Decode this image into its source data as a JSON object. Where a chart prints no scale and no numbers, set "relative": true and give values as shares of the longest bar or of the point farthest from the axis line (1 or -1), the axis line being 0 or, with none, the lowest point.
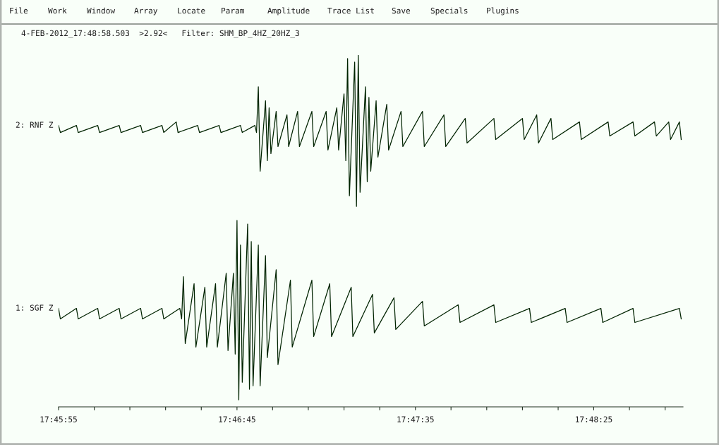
{
  "chart_data": {
    "type": "line",
    "title": "4-FEB-2012_17:48:58.503  >2.92<   Filter: SHM_BP_4HZ_20HZ_3",
    "annotations": [
      "File",
      "Work",
      "Window",
      "Array",
      "Locate",
      "Param",
      "Amplitude",
      "Trace List",
      "Save",
      "Specials",
      "Plugins"
    ],
    "relative": true,
    "xlim": [
      17.76528,
      17.81389
    ],
    "grid": false,
    "legend": false,
    "marker": "none",
    "line_style": "solid",
    "xticks": [
      {
        "value": 17.76528,
        "label": "17:45:55"
      },
      {
        "value": 17.76806,
        "label": null
      },
      {
        "value": 17.77083,
        "label": null
      },
      {
        "value": 17.77361,
        "label": null
      },
      {
        "value": 17.77639,
        "label": null
      },
      {
        "value": 17.77917,
        "label": "17:46:45"
      },
      {
        "value": 17.78194,
        "label": null
      },
      {
        "value": 17.78472,
        "label": null
      },
      {
        "value": 17.7875,
        "label": null
      },
      {
        "value": 17.79028,
        "label": null
      },
      {
        "value": 17.79306,
        "label": "17:47:35"
      },
      {
        "value": 17.79583,
        "label": null
      },
      {
        "value": 17.79861,
        "label": null
      },
      {
        "value": 17.80139,
        "label": null
      },
      {
        "value": 17.80417,
        "label": null
      },
      {
        "value": 17.80694,
        "label": "17:48:25"
      },
      {
        "value": 17.80972,
        "label": null
      },
      {
        "value": 17.8125,
        "label": null
      }
    ],
    "series": [
      {
        "name": "2: RNF Z",
        "color": "#002400",
        "x": [
          17.76528,
          17.76542,
          17.76667,
          17.76681,
          17.76833,
          17.76847,
          17.77,
          17.77014,
          17.77167,
          17.77181,
          17.77333,
          17.77347,
          17.77444,
          17.77458,
          17.77611,
          17.77625,
          17.77778,
          17.77792,
          17.77944,
          17.77958,
          17.78056,
          17.78069,
          17.78083,
          17.78097,
          17.78139,
          17.78153,
          17.78167,
          17.78181,
          17.78222,
          17.78236,
          17.78306,
          17.78319,
          17.78389,
          17.78403,
          17.785,
          17.78514,
          17.78611,
          17.78625,
          17.78694,
          17.78708,
          17.7875,
          17.78764,
          17.78778,
          17.78792,
          17.78833,
          17.78847,
          17.78861,
          17.78875,
          17.78917,
          17.78931,
          17.78944,
          17.78958,
          17.79,
          17.79014,
          17.79083,
          17.79097,
          17.79194,
          17.79208,
          17.79361,
          17.79375,
          17.79528,
          17.79542,
          17.79694,
          17.79708,
          17.79917,
          17.79931,
          17.80139,
          17.80153,
          17.8025,
          17.80264,
          17.80361,
          17.80375,
          17.80583,
          17.80597,
          17.80806,
          17.80819,
          17.81,
          17.81014,
          17.81167,
          17.81181,
          17.81278,
          17.81292,
          17.81361,
          17.81375
        ],
        "values": [
          0.8,
          0.78,
          0.8,
          0.78,
          0.8,
          0.78,
          0.8,
          0.78,
          0.8,
          0.78,
          0.8,
          0.78,
          0.81,
          0.78,
          0.8,
          0.78,
          0.8,
          0.78,
          0.8,
          0.78,
          0.8,
          0.78,
          0.91,
          0.67,
          0.87,
          0.7,
          0.85,
          0.72,
          0.84,
          0.74,
          0.83,
          0.74,
          0.84,
          0.74,
          0.84,
          0.74,
          0.84,
          0.73,
          0.85,
          0.73,
          0.89,
          0.7,
          0.99,
          0.6,
          0.98,
          0.57,
          1,
          0.61,
          0.91,
          0.64,
          0.88,
          0.67,
          0.87,
          0.71,
          0.86,
          0.73,
          0.84,
          0.74,
          0.84,
          0.74,
          0.83,
          0.74,
          0.82,
          0.75,
          0.82,
          0.76,
          0.82,
          0.76,
          0.83,
          0.75,
          0.82,
          0.76,
          0.81,
          0.76,
          0.81,
          0.77,
          0.81,
          0.77,
          0.81,
          0.77,
          0.81,
          0.76,
          0.81,
          0.76
        ]
      },
      {
        "name": "1: SGF Z",
        "color": "#002400",
        "x": [
          17.76528,
          17.76542,
          17.76667,
          17.76681,
          17.76833,
          17.76847,
          17.77,
          17.77014,
          17.77167,
          17.77181,
          17.77333,
          17.77347,
          17.77472,
          17.77486,
          17.775,
          17.77514,
          17.77583,
          17.77597,
          17.77667,
          17.77681,
          17.7775,
          17.77764,
          17.77833,
          17.77847,
          17.77889,
          17.77903,
          17.77917,
          17.77931,
          17.77944,
          17.77958,
          17.78,
          17.78014,
          17.78028,
          17.78042,
          17.78083,
          17.78097,
          17.78139,
          17.78153,
          17.78222,
          17.78236,
          17.78333,
          17.78347,
          17.785,
          17.78514,
          17.78639,
          17.78653,
          17.78806,
          17.78819,
          17.78972,
          17.78986,
          17.79139,
          17.79153,
          17.79361,
          17.79375,
          17.79639,
          17.79653,
          17.79917,
          17.79931,
          17.80194,
          17.80208,
          17.80472,
          17.80486,
          17.8075,
          17.80764,
          17.81,
          17.81014,
          17.81361,
          17.81375
        ],
        "values": [
          0.28,
          0.25,
          0.28,
          0.25,
          0.28,
          0.25,
          0.28,
          0.25,
          0.28,
          0.25,
          0.28,
          0.25,
          0.28,
          0.25,
          0.37,
          0.18,
          0.35,
          0.17,
          0.34,
          0.17,
          0.35,
          0.17,
          0.38,
          0.16,
          0.38,
          0.15,
          0.53,
          0.02,
          0.46,
          0.07,
          0.52,
          0.05,
          0.47,
          0.06,
          0.46,
          0.06,
          0.43,
          0.14,
          0.39,
          0.12,
          0.36,
          0.17,
          0.36,
          0.2,
          0.35,
          0.2,
          0.34,
          0.2,
          0.32,
          0.21,
          0.31,
          0.22,
          0.3,
          0.23,
          0.29,
          0.24,
          0.29,
          0.24,
          0.28,
          0.24,
          0.28,
          0.24,
          0.28,
          0.24,
          0.28,
          0.24,
          0.28,
          0.25
        ]
      }
    ]
  }
}
